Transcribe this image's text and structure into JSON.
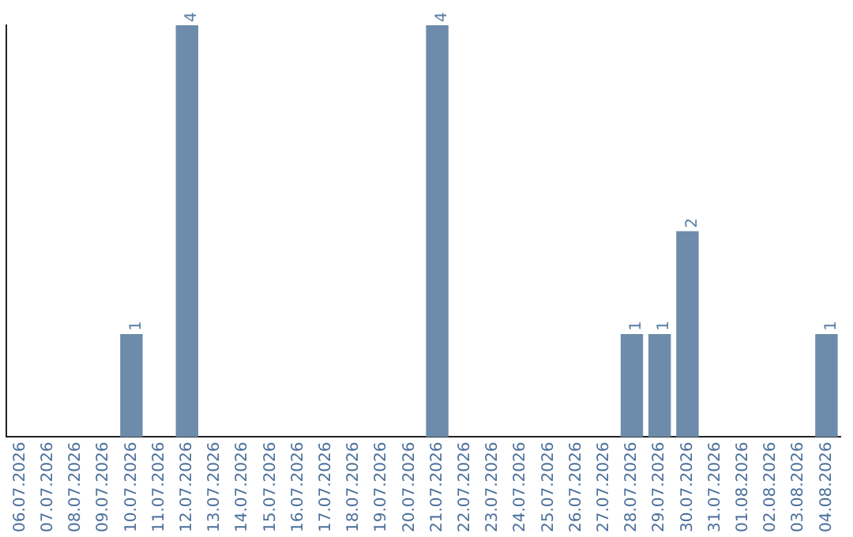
{
  "chart_data": {
    "type": "bar",
    "categories": [
      "06.07.2026",
      "07.07.2026",
      "08.07.2026",
      "09.07.2026",
      "10.07.2026",
      "11.07.2026",
      "12.07.2026",
      "13.07.2026",
      "14.07.2026",
      "15.07.2026",
      "16.07.2026",
      "17.07.2026",
      "18.07.2026",
      "19.07.2026",
      "20.07.2026",
      "21.07.2026",
      "22.07.2026",
      "23.07.2026",
      "24.07.2026",
      "25.07.2026",
      "26.07.2026",
      "27.07.2026",
      "28.07.2026",
      "29.07.2026",
      "30.07.2026",
      "31.07.2026",
      "01.08.2026",
      "02.08.2026",
      "03.08.2026",
      "04.08.2026"
    ],
    "values": [
      0,
      0,
      0,
      0,
      1,
      0,
      4,
      0,
      0,
      0,
      0,
      0,
      0,
      0,
      0,
      4,
      0,
      0,
      0,
      0,
      0,
      0,
      1,
      1,
      2,
      0,
      0,
      0,
      0,
      1
    ],
    "value_labels": [
      null,
      null,
      null,
      null,
      "1",
      null,
      "4",
      null,
      null,
      null,
      null,
      null,
      null,
      null,
      null,
      "4",
      null,
      null,
      null,
      null,
      null,
      null,
      "1",
      "1",
      "2",
      null,
      null,
      null,
      null,
      "1"
    ],
    "color": "#6d8cab",
    "grid": false,
    "legend": false,
    "tick_labels": "x"
  }
}
